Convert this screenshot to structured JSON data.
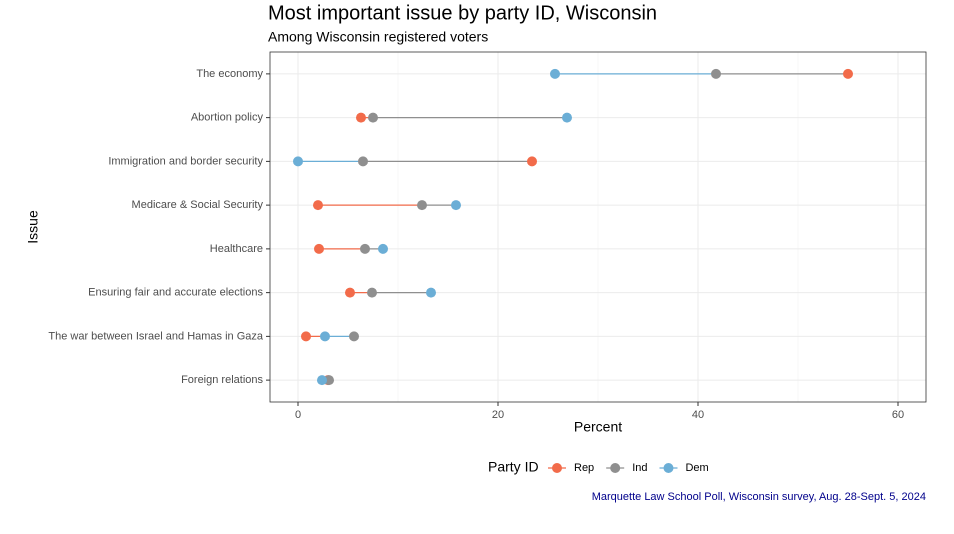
{
  "chart_data": {
    "type": "dumbbell",
    "title": "Most important issue by party ID, Wisconsin",
    "subtitle": "Among Wisconsin registered voters",
    "x_label": "Percent",
    "y_label": "Issue",
    "legend_title": "Party ID",
    "caption": "Marquette Law School Poll, Wisconsin survey, Aug. 28-Sept. 5, 2024",
    "categories": [
      "The economy",
      "Abortion policy",
      "Immigration and border security",
      "Medicare & Social Security",
      "Healthcare",
      "Ensuring fair and accurate elections",
      "The war between Israel and Hamas in Gaza",
      "Foreign relations"
    ],
    "series": [
      {
        "name": "Rep",
        "color": "#f26b4a",
        "values": [
          55.0,
          6.3,
          23.4,
          2.0,
          2.1,
          5.2,
          0.8,
          3.0
        ]
      },
      {
        "name": "Ind",
        "color": "#8f8f8f",
        "values": [
          41.8,
          7.5,
          6.5,
          12.4,
          6.7,
          7.4,
          5.6,
          3.1
        ]
      },
      {
        "name": "Dem",
        "color": "#6baed6",
        "values": [
          25.7,
          26.9,
          0.0,
          15.8,
          8.5,
          13.3,
          2.7,
          2.4
        ]
      }
    ],
    "xlim": [
      -2.8,
      62.8
    ],
    "xticks": [
      0,
      20,
      40,
      60
    ],
    "grid": true,
    "legend_position": "bottom"
  }
}
